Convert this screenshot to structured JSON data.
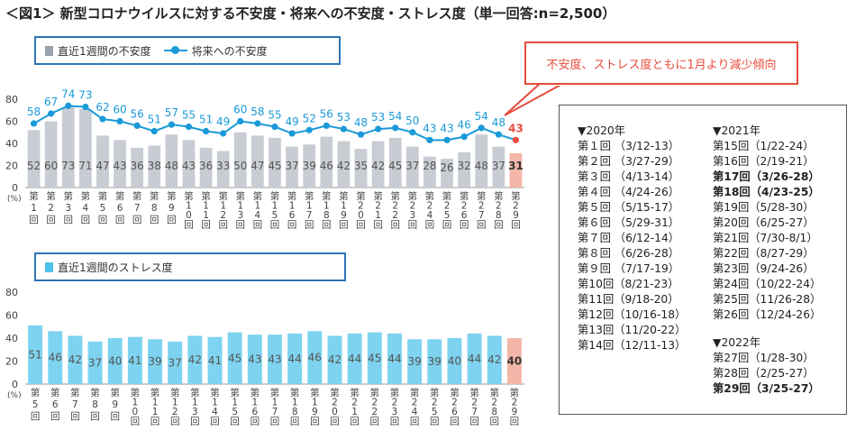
{
  "title": "＜図1＞ 新型コロナウイルスに対する不安度・将来への不安度・ストレス度（単一回答:n=2,500）",
  "callout": "不安度、ストレス度ともに1月より減少傾向",
  "colors": {
    "bar_gray": "#c8ccd3",
    "bar_blue": "#7dd3f0",
    "line_blue": "#1a9ad9",
    "highlight": "#f4b6a8",
    "accent_red": "#e74c3c"
  },
  "chart_data": [
    {
      "type": "bar",
      "y_unit": "(%)",
      "ylim": [
        0,
        80
      ],
      "yticks": [
        0,
        20,
        40,
        60,
        80
      ],
      "grid": false,
      "legend_position": "top-left",
      "categories": [
        "第1回",
        "第2回",
        "第3回",
        "第4回",
        "第5回",
        "第6回",
        "第7回",
        "第8回",
        "第9回",
        "第10回",
        "第11回",
        "第12回",
        "第13回",
        "第14回",
        "第15回",
        "第16回",
        "第17回",
        "第18回",
        "第19回",
        "第20回",
        "第21回",
        "第22回",
        "第23回",
        "第24回",
        "第25回",
        "第26回",
        "第27回",
        "第28回",
        "第29回"
      ],
      "series": [
        {
          "name": "直近1週間の不安度",
          "kind": "bar",
          "values": [
            52,
            60,
            73,
            71,
            47,
            43,
            36,
            38,
            48,
            43,
            36,
            33,
            50,
            47,
            45,
            37,
            39,
            46,
            42,
            35,
            42,
            45,
            37,
            28,
            26,
            32,
            48,
            37,
            31
          ]
        },
        {
          "name": "将来への不安度",
          "kind": "line",
          "values": [
            58,
            67,
            74,
            73,
            62,
            60,
            56,
            51,
            57,
            55,
            51,
            49,
            60,
            58,
            55,
            49,
            52,
            56,
            53,
            48,
            53,
            54,
            50,
            43,
            43,
            46,
            54,
            48,
            43
          ]
        }
      ]
    },
    {
      "type": "bar",
      "y_unit": "(%)",
      "ylim": [
        0,
        80
      ],
      "yticks": [
        0,
        20,
        40,
        60,
        80
      ],
      "grid": false,
      "legend_position": "top-left",
      "categories": [
        "第5回",
        "第6回",
        "第7回",
        "第8回",
        "第9回",
        "第10回",
        "第11回",
        "第12回",
        "第13回",
        "第14回",
        "第15回",
        "第16回",
        "第17回",
        "第18回",
        "第19回",
        "第20回",
        "第21回",
        "第22回",
        "第23回",
        "第24回",
        "第25回",
        "第26回",
        "第27回",
        "第28回",
        "第29回"
      ],
      "series": [
        {
          "name": "直近1週間のストレス度",
          "kind": "bar",
          "values": [
            51,
            46,
            42,
            37,
            40,
            41,
            39,
            37,
            42,
            41,
            45,
            43,
            43,
            44,
            46,
            42,
            44,
            45,
            44,
            39,
            39,
            40,
            44,
            42,
            40
          ]
        }
      ]
    }
  ],
  "schedule": {
    "col1": [
      {
        "text": "▼2020年",
        "hdr": true
      },
      {
        "text": "第１回 （3/12-13）"
      },
      {
        "text": "第２回 （3/27-29）"
      },
      {
        "text": "第３回 （4/13-14）"
      },
      {
        "text": "第４回 （4/24-26）"
      },
      {
        "text": "第５回 （5/15-17）"
      },
      {
        "text": "第６回 （5/29-31）"
      },
      {
        "text": "第７回 （6/12-14）"
      },
      {
        "text": "第８回 （6/26-28）"
      },
      {
        "text": "第９回 （7/17-19）"
      },
      {
        "text": "第10回（8/21-23）"
      },
      {
        "text": "第11回（9/18-20）"
      },
      {
        "text": "第12回（10/16-18）"
      },
      {
        "text": "第13回（11/20-22）"
      },
      {
        "text": "第14回（12/11-13）"
      }
    ],
    "col2": [
      {
        "text": "▼2021年",
        "hdr": true
      },
      {
        "text": "第15回（1/22-24）"
      },
      {
        "text": "第16回（2/19-21）"
      },
      {
        "text": "第17回（3/26-28）",
        "bold": true
      },
      {
        "text": "第18回（4/23-25）",
        "bold": true
      },
      {
        "text": "第19回（5/28-30）"
      },
      {
        "text": "第20回（6/25-27）"
      },
      {
        "text": "第21回（7/30-8/1）"
      },
      {
        "text": "第22回（8/27-29）"
      },
      {
        "text": "第23回（9/24-26）"
      },
      {
        "text": "第24回（10/22-24）"
      },
      {
        "text": "第25回（11/26-28）"
      },
      {
        "text": "第26回（12/24-26）"
      },
      {
        "gap": true
      },
      {
        "text": "▼2022年",
        "hdr": true
      },
      {
        "text": "第27回（1/28-30）"
      },
      {
        "text": "第28回（2/25-27）"
      },
      {
        "text": "第29回（3/25-27）",
        "bold": true
      }
    ]
  }
}
